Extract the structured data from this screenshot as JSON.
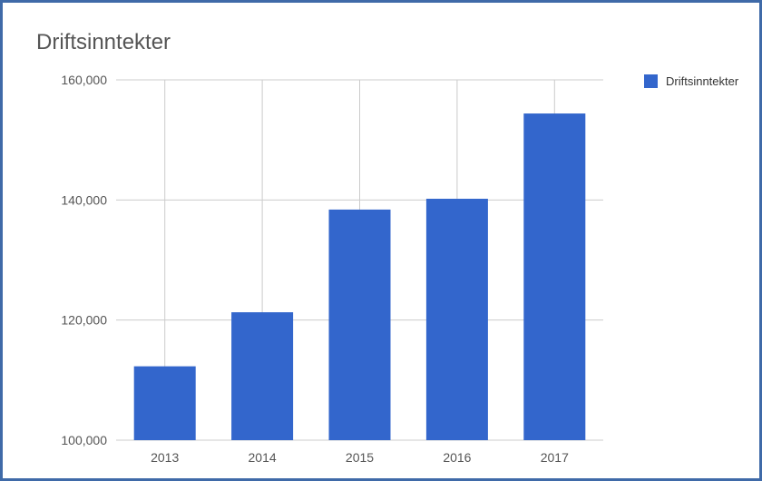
{
  "colors": {
    "frame_border": "#3f6aa8",
    "bar": "#3366cc",
    "grid": "#cccccc",
    "text": "#555555"
  },
  "chart_data": {
    "type": "bar",
    "title": "Driftsinntekter",
    "xlabel": "",
    "ylabel": "",
    "categories": [
      "2013",
      "2014",
      "2015",
      "2016",
      "2017"
    ],
    "series": [
      {
        "name": "Driftsinntekter",
        "values": [
          112300,
          121300,
          138400,
          140200,
          154400
        ]
      }
    ],
    "ylim": [
      100000,
      160000
    ],
    "yticks": [
      100000,
      120000,
      140000,
      160000
    ],
    "ytick_labels": [
      "100,000",
      "120,000",
      "140,000",
      "160,000"
    ],
    "grid": true,
    "legend_position": "right"
  }
}
